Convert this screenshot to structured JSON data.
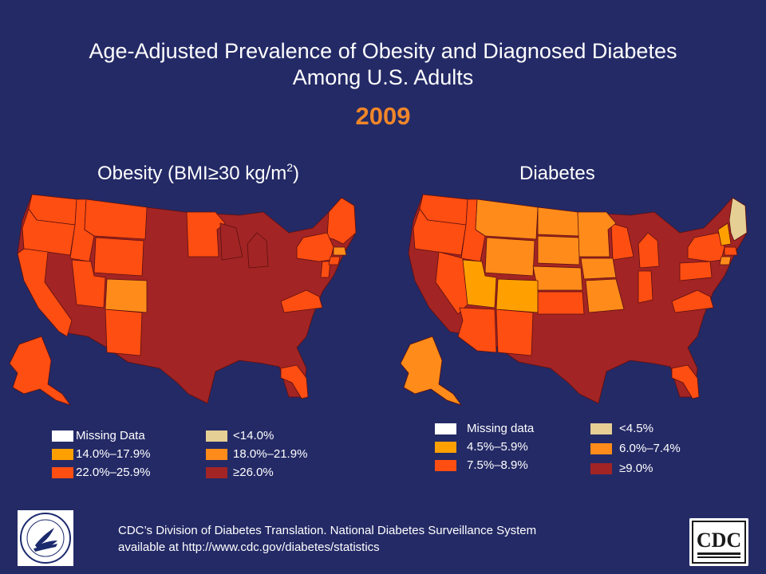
{
  "title": {
    "line1": "Age-Adjusted Prevalence of Obesity and Diagnosed Diabetes",
    "line2": "Among U.S. Adults",
    "year": "2009"
  },
  "colors": {
    "background": "#242a66",
    "year": "#f0862a",
    "missing": "#ffffff",
    "obesity_lt14": "#e5cf94",
    "obesity_14_17": "#ffa000",
    "obesity_18_21": "#ff8c1a",
    "obesity_22_25": "#ff4e12",
    "obesity_ge26": "#a32424",
    "diabetes_lt45": "#e5cf94",
    "diabetes_45_59": "#ffa000",
    "diabetes_60_74": "#ff8c1a",
    "diabetes_75_89": "#ff4e12",
    "diabetes_ge90": "#a32424"
  },
  "obesity": {
    "title_prefix": "Obesity (BMI≥30 kg/m",
    "title_sup": "2",
    "title_suffix": ")",
    "legend": [
      {
        "label": "Missing Data",
        "color": "#ffffff"
      },
      {
        "label": "<14.0%",
        "color": "#e5cf94"
      },
      {
        "label": "14.0%–17.9%",
        "color": "#ffa000"
      },
      {
        "label": "18.0%–21.9%",
        "color": "#ff8c1a"
      },
      {
        "label": "22.0%–25.9%",
        "color": "#ff4e12"
      },
      {
        "label": "≥26.0%",
        "color": "#a32424"
      }
    ]
  },
  "diabetes": {
    "title": "Diabetes",
    "legend": [
      {
        "label": "Missing data",
        "color": "#ffffff"
      },
      {
        "label": "<4.5%",
        "color": "#e5cf94"
      },
      {
        "label": "4.5%–5.9%",
        "color": "#ffa000"
      },
      {
        "label": "6.0%–7.4%",
        "color": "#ff8c1a"
      },
      {
        "label": "7.5%–8.9%",
        "color": "#ff4e12"
      },
      {
        "label": "≥9.0%",
        "color": "#a32424"
      }
    ]
  },
  "footer": {
    "line1": "CDC’s Division of Diabetes Translation. National Diabetes Surveillance System",
    "line2": "available at http://www.cdc.gov/diabetes/statistics"
  },
  "logos": {
    "hhs": "hhs-seal-logo",
    "cdc": "CDC"
  }
}
